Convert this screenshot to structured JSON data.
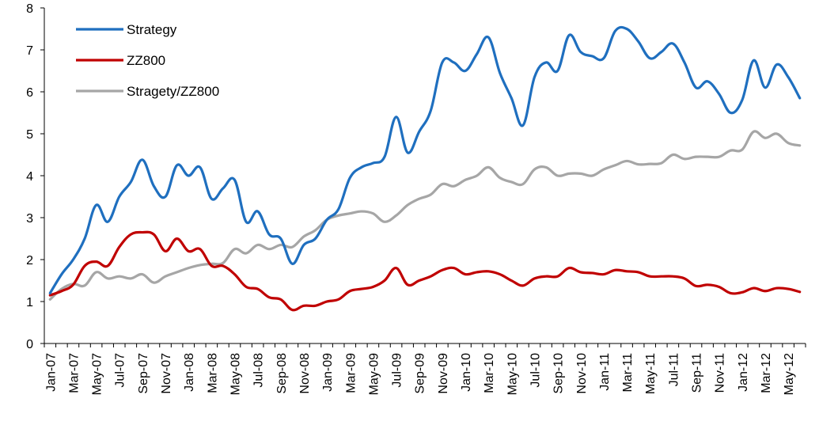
{
  "chart_data": {
    "type": "line",
    "title": "",
    "xlabel": "",
    "ylabel": "",
    "ylim": [
      0,
      8
    ],
    "yticks": [
      0,
      1,
      2,
      3,
      4,
      5,
      6,
      7,
      8
    ],
    "grid": false,
    "legend_position": "top-left",
    "x": [
      "Jan-07",
      "Feb-07",
      "Mar-07",
      "Apr-07",
      "May-07",
      "Jun-07",
      "Jul-07",
      "Aug-07",
      "Sep-07",
      "Oct-07",
      "Nov-07",
      "Dec-07",
      "Jan-08",
      "Feb-08",
      "Mar-08",
      "Apr-08",
      "May-08",
      "Jun-08",
      "Jul-08",
      "Aug-08",
      "Sep-08",
      "Oct-08",
      "Nov-08",
      "Dec-08",
      "Jan-09",
      "Feb-09",
      "Mar-09",
      "Apr-09",
      "May-09",
      "Jun-09",
      "Jul-09",
      "Aug-09",
      "Sep-09",
      "Oct-09",
      "Nov-09",
      "Dec-09",
      "Jan-10",
      "Feb-10",
      "Mar-10",
      "Apr-10",
      "May-10",
      "Jun-10",
      "Jul-10",
      "Aug-10",
      "Sep-10",
      "Oct-10",
      "Nov-10",
      "Dec-10",
      "Jan-11",
      "Feb-11",
      "Mar-11",
      "Apr-11",
      "May-11",
      "Jun-11",
      "Jul-11",
      "Aug-11",
      "Sep-11",
      "Oct-11",
      "Nov-11",
      "Dec-11",
      "Jan-12",
      "Feb-12",
      "Mar-12",
      "Apr-12",
      "May-12",
      "Jun-12"
    ],
    "x_tick_labels": [
      "Jan-07",
      "Mar-07",
      "May-07",
      "Jul-07",
      "Sep-07",
      "Nov-07",
      "Jan-08",
      "Mar-08",
      "May-08",
      "Jul-08",
      "Sep-08",
      "Nov-08",
      "Jan-09",
      "Mar-09",
      "May-09",
      "Jul-09",
      "Sep-09",
      "Nov-09",
      "Jan-10",
      "Mar-10",
      "May-10",
      "Jul-10",
      "Sep-10",
      "Nov-10",
      "Jan-11",
      "Mar-11",
      "May-11",
      "Jul-11",
      "Sep-11",
      "Nov-11",
      "Jan-12",
      "Mar-12",
      "May-12"
    ],
    "series": [
      {
        "name": "Strategy",
        "color": "#1f6fbf",
        "values": [
          1.2,
          1.65,
          2.0,
          2.5,
          3.3,
          2.9,
          3.5,
          3.85,
          4.38,
          3.75,
          3.5,
          4.25,
          4.0,
          4.2,
          3.45,
          3.7,
          3.9,
          2.9,
          3.15,
          2.6,
          2.5,
          1.9,
          2.35,
          2.5,
          2.95,
          3.2,
          3.95,
          4.2,
          4.3,
          4.45,
          5.4,
          4.55,
          5.05,
          5.55,
          6.7,
          6.7,
          6.5,
          6.9,
          7.3,
          6.45,
          5.85,
          5.2,
          6.35,
          6.7,
          6.5,
          7.35,
          6.95,
          6.85,
          6.8,
          7.45,
          7.5,
          7.2,
          6.8,
          6.95,
          7.15,
          6.7,
          6.1,
          6.25,
          5.95,
          5.5,
          5.8,
          6.75,
          6.1,
          6.65,
          6.35,
          5.85
        ]
      },
      {
        "name": "ZZ800",
        "color": "#c00000",
        "values": [
          1.15,
          1.25,
          1.4,
          1.85,
          1.95,
          1.85,
          2.3,
          2.6,
          2.65,
          2.6,
          2.2,
          2.5,
          2.2,
          2.25,
          1.85,
          1.85,
          1.65,
          1.35,
          1.3,
          1.1,
          1.05,
          0.8,
          0.9,
          0.9,
          1.0,
          1.05,
          1.25,
          1.3,
          1.35,
          1.5,
          1.8,
          1.4,
          1.5,
          1.6,
          1.75,
          1.8,
          1.65,
          1.7,
          1.72,
          1.65,
          1.5,
          1.38,
          1.55,
          1.6,
          1.6,
          1.8,
          1.7,
          1.68,
          1.65,
          1.75,
          1.72,
          1.7,
          1.6,
          1.6,
          1.6,
          1.55,
          1.37,
          1.4,
          1.35,
          1.2,
          1.22,
          1.32,
          1.25,
          1.32,
          1.3,
          1.23
        ]
      },
      {
        "name": "Stragety/ZZ800",
        "color": "#a6a6a6",
        "values": [
          1.05,
          1.3,
          1.42,
          1.38,
          1.7,
          1.55,
          1.6,
          1.55,
          1.65,
          1.45,
          1.6,
          1.7,
          1.8,
          1.87,
          1.9,
          1.92,
          2.25,
          2.15,
          2.35,
          2.25,
          2.35,
          2.3,
          2.55,
          2.7,
          2.95,
          3.05,
          3.1,
          3.15,
          3.1,
          2.9,
          3.05,
          3.3,
          3.45,
          3.55,
          3.8,
          3.75,
          3.9,
          4.0,
          4.2,
          3.95,
          3.85,
          3.8,
          4.15,
          4.2,
          4.0,
          4.05,
          4.05,
          4.0,
          4.15,
          4.25,
          4.35,
          4.27,
          4.28,
          4.3,
          4.5,
          4.4,
          4.45,
          4.45,
          4.45,
          4.6,
          4.62,
          5.05,
          4.9,
          5.0,
          4.78,
          4.72
        ]
      }
    ]
  }
}
